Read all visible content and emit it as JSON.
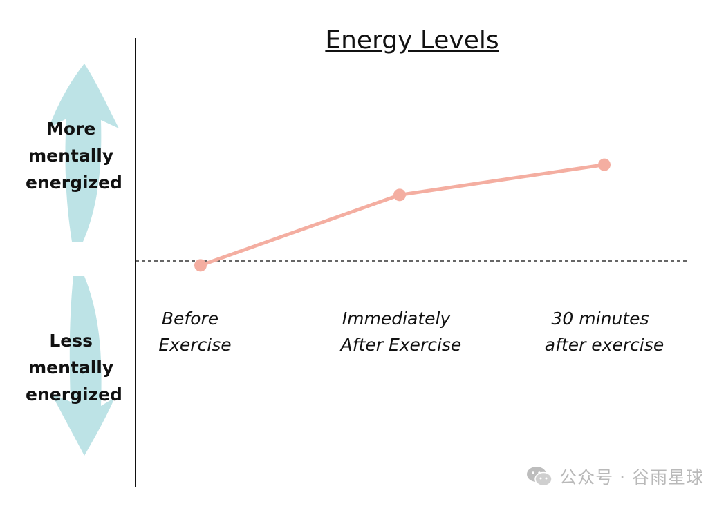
{
  "chart_data": {
    "type": "line",
    "title": "Energy Levels",
    "categories": [
      "Before Exercise",
      "Immediately After Exercise",
      "30 minutes after exercise"
    ],
    "category_lines": [
      [
        "Before",
        "Exercise"
      ],
      [
        "Immediately",
        "After Exercise"
      ],
      [
        "30 minutes",
        "after exercise"
      ]
    ],
    "series": [
      {
        "values": [
          0,
          3.5,
          5
        ]
      }
    ],
    "ylim": [
      -11,
      11.3
    ],
    "baseline": 0,
    "y_label_top": [
      "More",
      "mentally",
      "energized"
    ],
    "y_label_bottom": [
      "Less",
      "mentally",
      "energized"
    ],
    "grid": false,
    "colors": {
      "line": "#f4aea1",
      "arrow": "#bde3e6",
      "axis": "#111111",
      "baseline": "#333333"
    }
  },
  "watermark": {
    "icon": "wechat-icon",
    "text": "公众号 · 谷雨星球"
  }
}
